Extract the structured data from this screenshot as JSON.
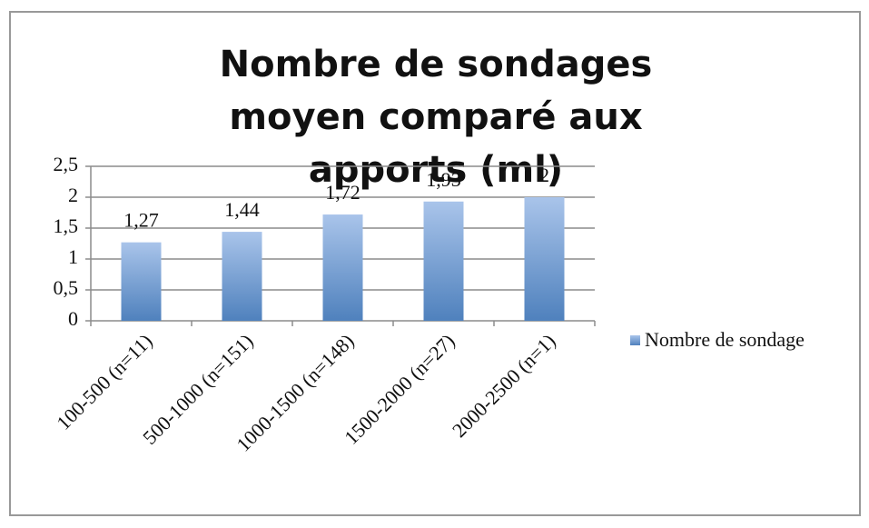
{
  "chart_data": {
    "type": "bar",
    "title": "Nombre de sondages moyen comparé aux apports (ml)",
    "categories": [
      "100-500 (n=11)",
      "500-1000 (n=151)",
      "1000-1500 (n=148)",
      "1500-2000 (n=27)",
      "2000-2500 (n=1)"
    ],
    "series": [
      {
        "name": "Nombre de sondage",
        "color": "#4f81bd",
        "values": [
          1.27,
          1.44,
          1.72,
          1.93,
          2
        ],
        "value_labels": [
          "1,27",
          "1,44",
          "1,72",
          "1,93",
          "2"
        ]
      }
    ],
    "ylim": [
      0,
      2.5
    ],
    "yticks": [
      0,
      {
        "value": 0.5,
        "label": "0,5"
      },
      1,
      {
        "value": 1.5,
        "label": "1,5"
      },
      2,
      {
        "value": 2.5,
        "label": "2,5"
      }
    ],
    "grid": true,
    "legend": "right"
  }
}
